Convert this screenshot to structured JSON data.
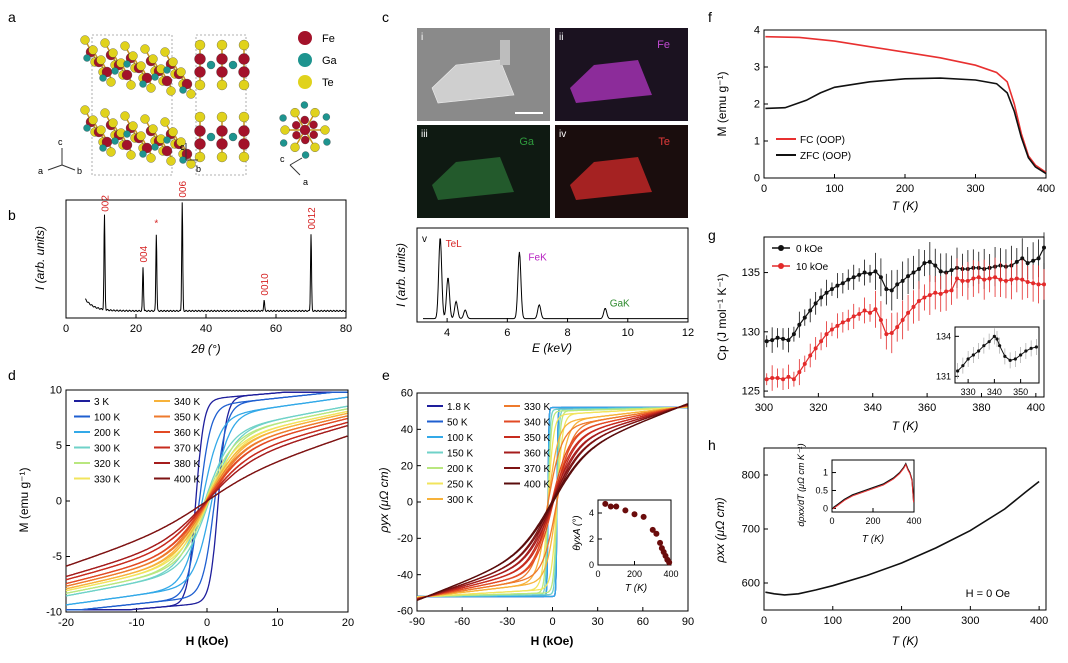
{
  "panel_a": {
    "letter": "a",
    "legend": [
      {
        "label": "Fe",
        "color": "#a3122a"
      },
      {
        "label": "Ga",
        "color": "#1e948f"
      },
      {
        "label": "Te",
        "color": "#e0d21c"
      }
    ],
    "axes_labels": {
      "c": "c",
      "a": "a",
      "b": "b"
    }
  },
  "panel_b": {
    "letter": "b"
  },
  "panel_c": {
    "letter": "c",
    "tiles": [
      {
        "numeral": "i",
        "element": ""
      },
      {
        "numeral": "ii",
        "element": "Fe"
      },
      {
        "numeral": "iii",
        "element": "Ga"
      },
      {
        "numeral": "iv",
        "element": "Te"
      }
    ],
    "spectrum_numeral": "v"
  },
  "panel_d": {
    "letter": "d"
  },
  "panel_e": {
    "letter": "e"
  },
  "panel_f": {
    "letter": "f"
  },
  "panel_g": {
    "letter": "g"
  },
  "panel_h": {
    "letter": "h"
  },
  "colors": {
    "temperature_scale": [
      "#1e1e9c",
      "#1f5fd0",
      "#33a9e8",
      "#6fd2c8",
      "#b9e77f",
      "#f2e45c",
      "#f7b23a",
      "#ee7a2c",
      "#e24a24",
      "#c72b1e",
      "#a51c1c",
      "#7e1313",
      "#5a0c0c"
    ],
    "fc": "#e83030",
    "zfc": "#111111",
    "red_series": "#e32a2a"
  },
  "chart_data": [
    {
      "id": "b",
      "type": "line",
      "xlabel": "2θ (°)",
      "ylabel": "I (arb. units)",
      "xlim": [
        0,
        80
      ],
      "xticks": [
        0,
        20,
        40,
        60,
        80
      ],
      "peaks": [
        {
          "x": 11,
          "h": 0.8,
          "label": "002"
        },
        {
          "x": 22,
          "h": 0.37,
          "label": "004"
        },
        {
          "x": 25.8,
          "h": 0.65,
          "label": "*"
        },
        {
          "x": 33.2,
          "h": 0.92,
          "label": "006"
        },
        {
          "x": 56.6,
          "h": 0.09,
          "label": "0010"
        },
        {
          "x": 70,
          "h": 0.65,
          "label": "0012"
        }
      ]
    },
    {
      "id": "c_v",
      "type": "line",
      "xlabel": "E (keV)",
      "ylabel": "I (arb. units)",
      "xlim": [
        3,
        12
      ],
      "xticks": [
        4,
        6,
        8,
        10,
        12
      ],
      "peaks": [
        {
          "x": 3.77,
          "h": 0.95,
          "label": "TeL"
        },
        {
          "x": 4.03,
          "h": 0.48,
          "label": ""
        },
        {
          "x": 4.3,
          "h": 0.2,
          "label": ""
        },
        {
          "x": 4.6,
          "h": 0.1,
          "label": ""
        },
        {
          "x": 6.4,
          "h": 0.78,
          "label": "FeK"
        },
        {
          "x": 7.06,
          "h": 0.16,
          "label": ""
        },
        {
          "x": 9.25,
          "h": 0.12,
          "label": "GaK"
        }
      ]
    },
    {
      "id": "d",
      "type": "line",
      "xlabel": "H (kOe)",
      "ylabel": "M (emu g⁻¹)",
      "xlim": [
        -20,
        20
      ],
      "ylim": [
        -10,
        10
      ],
      "xticks": [
        -20,
        -10,
        0,
        10,
        20
      ],
      "yticks": [
        -10,
        -5,
        0,
        5,
        10
      ],
      "series": [
        {
          "name": "3 K",
          "ms": 9.2,
          "hc": 1.6
        },
        {
          "name": "100 K",
          "ms": 8.6,
          "hc": 1.1
        },
        {
          "name": "200 K",
          "ms": 7.6,
          "hc": 0.7
        },
        {
          "name": "300 K",
          "ms": 6.2,
          "hc": 0.35
        },
        {
          "name": "320 K",
          "ms": 5.8,
          "hc": 0.3
        },
        {
          "name": "330 K",
          "ms": 5.4,
          "hc": 0.25
        },
        {
          "name": "340 K",
          "ms": 5.1,
          "hc": 0.2
        },
        {
          "name": "350 K",
          "ms": 4.7,
          "hc": 0.15
        },
        {
          "name": "360 K",
          "ms": 4.3,
          "hc": 0.1
        },
        {
          "name": "370 K",
          "ms": 3.7,
          "hc": 0.05
        },
        {
          "name": "380 K",
          "ms": 3.2,
          "hc": 0
        },
        {
          "name": "400 K",
          "ms": 1.6,
          "hc": 0
        }
      ]
    },
    {
      "id": "e",
      "type": "line",
      "xlabel": "H (kOe)",
      "ylabel": "ρyx (μΩ cm)",
      "xlim": [
        -90,
        90
      ],
      "ylim": [
        -60,
        60
      ],
      "xticks": [
        -90,
        -60,
        -30,
        0,
        30,
        60,
        90
      ],
      "yticks": [
        -60,
        -40,
        -20,
        0,
        20,
        40,
        60
      ],
      "series": [
        {
          "name": "1.8 K",
          "sat": 52
        },
        {
          "name": "50 K",
          "sat": 52
        },
        {
          "name": "100 K",
          "sat": 52
        },
        {
          "name": "150 K",
          "sat": 51
        },
        {
          "name": "200 K",
          "sat": 50
        },
        {
          "name": "250 K",
          "sat": 48
        },
        {
          "name": "300 K",
          "sat": 44
        },
        {
          "name": "330 K",
          "sat": 41
        },
        {
          "name": "340 K",
          "sat": 38
        },
        {
          "name": "350 K",
          "sat": 35
        },
        {
          "name": "360 K",
          "sat": 32
        },
        {
          "name": "370 K",
          "sat": 29
        },
        {
          "name": "400 K",
          "sat": 25
        }
      ],
      "inset": {
        "xlabel": "T (K)",
        "ylabel": "θyxA (°)",
        "xlim": [
          0,
          400
        ],
        "ylim": [
          0,
          5
        ],
        "xticks": [
          0,
          200,
          400
        ],
        "yticks": [
          0,
          2,
          4
        ],
        "x": [
          40,
          70,
          100,
          150,
          200,
          250,
          300,
          320,
          340,
          350,
          360,
          370,
          380,
          390
        ],
        "y": [
          4.7,
          4.5,
          4.5,
          4.2,
          3.9,
          3.7,
          2.7,
          2.4,
          1.7,
          1.3,
          1.0,
          0.7,
          0.4,
          0.2
        ]
      }
    },
    {
      "id": "f",
      "type": "line",
      "xlabel": "T (K)",
      "ylabel": "M (emu g⁻¹)",
      "xlim": [
        0,
        400
      ],
      "ylim": [
        0,
        4
      ],
      "xticks": [
        0,
        100,
        200,
        300,
        400
      ],
      "yticks": [
        0,
        1,
        2,
        3,
        4
      ],
      "series": [
        {
          "name": "FC (OOP)",
          "x": [
            2,
            50,
            100,
            150,
            200,
            250,
            300,
            330,
            345,
            355,
            365,
            375,
            385,
            400
          ],
          "y": [
            3.82,
            3.8,
            3.7,
            3.55,
            3.4,
            3.25,
            3.05,
            2.85,
            2.6,
            2.0,
            1.2,
            0.6,
            0.35,
            0.15
          ]
        },
        {
          "name": "ZFC (OOP)",
          "x": [
            2,
            30,
            60,
            80,
            100,
            150,
            200,
            250,
            300,
            330,
            345,
            355,
            365,
            375,
            385,
            400
          ],
          "y": [
            1.88,
            1.9,
            2.1,
            2.3,
            2.45,
            2.6,
            2.68,
            2.7,
            2.65,
            2.55,
            2.3,
            1.8,
            1.1,
            0.55,
            0.3,
            0.12
          ]
        }
      ]
    },
    {
      "id": "g",
      "type": "line",
      "xlabel": "T (K)",
      "ylabel": "Cp (J mol⁻¹ K⁻¹)",
      "xlim": [
        300,
        403
      ],
      "ylim": [
        124.5,
        138
      ],
      "xticks": [
        300,
        320,
        340,
        360,
        380,
        400
      ],
      "yticks": [
        125,
        130,
        135
      ],
      "series": [
        {
          "name": "0 kOe",
          "x": [
            301,
            303,
            305,
            307,
            309,
            311,
            313,
            315,
            317,
            319,
            321,
            323,
            325,
            327,
            329,
            331,
            333,
            335,
            337,
            339,
            341,
            343,
            345,
            347,
            349,
            351,
            353,
            355,
            357,
            359,
            361,
            363,
            365,
            367,
            369,
            371,
            373,
            375,
            377,
            379,
            381,
            383,
            385,
            387,
            389,
            391,
            393,
            395,
            397,
            399,
            401,
            403
          ],
          "y": [
            129.2,
            129.3,
            129.5,
            129.4,
            129.3,
            129.8,
            130.6,
            131.2,
            131.8,
            132.4,
            132.9,
            133.3,
            133.6,
            133.9,
            134.1,
            134.4,
            134.6,
            134.8,
            135.0,
            134.9,
            135.1,
            134.6,
            133.6,
            133.5,
            134.0,
            134.3,
            134.7,
            135.0,
            135.3,
            135.8,
            135.9,
            135.6,
            135.1,
            135.0,
            135.2,
            135.4,
            135.3,
            135.3,
            135.4,
            135.4,
            135.3,
            135.4,
            135.5,
            135.6,
            135.5,
            135.6,
            135.9,
            136.2,
            135.8,
            136.0,
            136.2,
            137.1
          ]
        },
        {
          "name": "10 kOe",
          "x": [
            301,
            303,
            305,
            307,
            309,
            311,
            313,
            315,
            317,
            319,
            321,
            323,
            325,
            327,
            329,
            331,
            333,
            335,
            337,
            339,
            341,
            343,
            345,
            347,
            349,
            351,
            353,
            355,
            357,
            359,
            361,
            363,
            365,
            367,
            369,
            371,
            373,
            375,
            377,
            379,
            381,
            383,
            385,
            387,
            389,
            391,
            393,
            395,
            397,
            399,
            401,
            403
          ],
          "y": [
            126.0,
            126.1,
            126.1,
            126.0,
            126.2,
            126.0,
            126.6,
            127.3,
            128.0,
            128.6,
            129.2,
            129.8,
            130.2,
            130.5,
            130.8,
            131.0,
            131.3,
            131.5,
            131.8,
            131.6,
            131.9,
            131.0,
            129.8,
            129.9,
            130.4,
            131.0,
            131.6,
            132.1,
            132.6,
            132.9,
            133.1,
            133.3,
            133.2,
            133.4,
            133.5,
            134.5,
            134.3,
            134.3,
            134.5,
            134.6,
            134.4,
            134.5,
            134.6,
            134.4,
            134.3,
            134.4,
            134.5,
            134.4,
            134.2,
            134.1,
            134.0,
            134.0
          ]
        }
      ],
      "inset": {
        "xlim": [
          325,
          357
        ],
        "ylim": [
          130.5,
          134.7
        ],
        "xticks": [
          330,
          340,
          350
        ],
        "yticks": [
          131,
          134
        ],
        "x": [
          326,
          328,
          330,
          332,
          334,
          336,
          338,
          340,
          341,
          342,
          344,
          346,
          348,
          350,
          352,
          354,
          356
        ],
        "y": [
          131.4,
          131.8,
          132.3,
          132.6,
          132.9,
          133.3,
          133.6,
          134.0,
          133.8,
          133.3,
          132.5,
          132.2,
          132.3,
          132.6,
          132.9,
          133.1,
          133.2
        ]
      }
    },
    {
      "id": "h",
      "type": "line",
      "xlabel": "T (K)",
      "ylabel": "ρxx (μΩ cm)",
      "xlim": [
        0,
        410
      ],
      "ylim": [
        550,
        850
      ],
      "xticks": [
        0,
        100,
        200,
        300,
        400
      ],
      "yticks": [
        600,
        700,
        800
      ],
      "annotation": "H = 0 Oe",
      "x": [
        2,
        15,
        30,
        50,
        75,
        100,
        150,
        200,
        250,
        300,
        350,
        380,
        400
      ],
      "y": [
        583,
        580,
        578,
        580,
        587,
        595,
        614,
        637,
        665,
        697,
        737,
        768,
        788
      ],
      "inset": {
        "xlabel": "T (K)",
        "ylabel": "dρxx/dT (μΩ cm K⁻¹)",
        "xlim": [
          0,
          400
        ],
        "ylim": [
          -0.1,
          1.35
        ],
        "xticks": [
          0,
          200,
          400
        ],
        "yticks": [
          0,
          0.5,
          1
        ],
        "x": [
          5,
          30,
          60,
          100,
          150,
          200,
          250,
          300,
          330,
          350,
          360,
          370,
          380,
          390,
          398
        ],
        "y": [
          0.02,
          0.12,
          0.25,
          0.38,
          0.48,
          0.58,
          0.68,
          0.85,
          1.0,
          1.15,
          1.25,
          1.1,
          1.0,
          0.8,
          0.2
        ]
      }
    }
  ]
}
